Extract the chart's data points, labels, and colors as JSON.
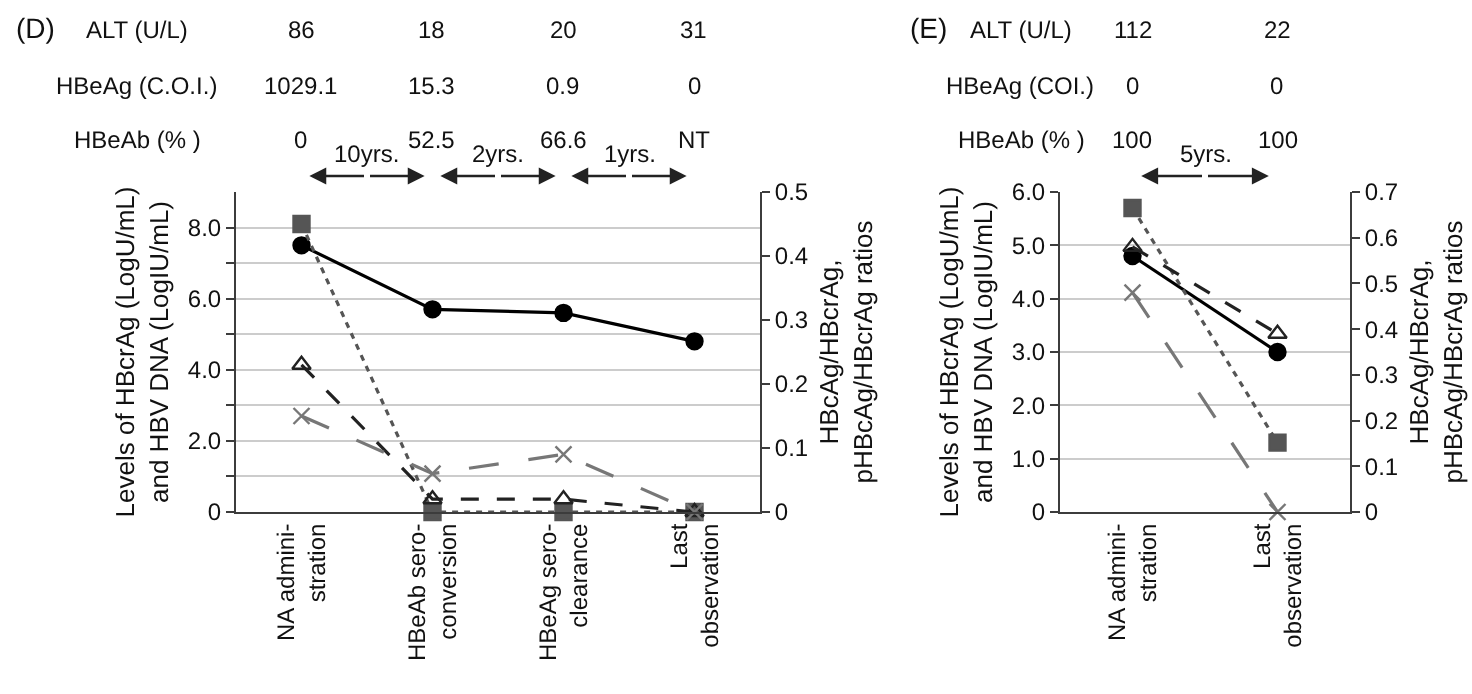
{
  "chart_data": [
    {
      "type": "line",
      "title": "(D)",
      "ylabel": "Levels of HBcrAg (LogU/mL)\nand HBV DNA (LogIU/mL)",
      "y2label": "HBcAg/HBcrAg,\npHBcAg/HBcrAg ratios",
      "categories": [
        "NA admini-\nstration",
        "HBeAb sero-\nconversion",
        "HBeAg sero-\nclearance",
        "Last\nobservation"
      ],
      "series": [
        {
          "color": "#000000",
          "marker": "circle",
          "line_style": "solid",
          "values": [
            7.5,
            5.7,
            5.6,
            4.8
          ]
        },
        {
          "color": "#555555",
          "marker": "square",
          "line_style": "dotted",
          "values": [
            8.1,
            0,
            0,
            0
          ]
        },
        {
          "color": "#222222",
          "marker": "triangle",
          "line_style": "dashed",
          "axis": "y2",
          "values": [
            0.23,
            0.02,
            0.02,
            0
          ]
        },
        {
          "color": "#777777",
          "marker": "cross",
          "line_style": "dashed",
          "axis": "y2",
          "values": [
            0.15,
            0.06,
            0.09,
            0
          ]
        }
      ],
      "ylim": [
        0,
        9
      ],
      "yticks": [
        0,
        {
          "value": 1,
          "label": null
        },
        {
          "value": 2,
          "label": "2.0"
        },
        {
          "value": 3,
          "label": null
        },
        {
          "value": 4,
          "label": "4.0"
        },
        {
          "value": 5,
          "label": null
        },
        {
          "value": 6,
          "label": "6.0"
        },
        {
          "value": 7,
          "label": null
        },
        {
          "value": 8,
          "label": "8.0"
        }
      ],
      "y2lim": [
        0,
        0.5
      ],
      "y2ticks": [
        0,
        0.1,
        0.2,
        0.3,
        0.4,
        0.5
      ],
      "grid": "y",
      "annotations": [
        "ALT (U/L)",
        "86",
        "18",
        "20",
        "31",
        "HBeAg (C.O.I.)",
        "1029.1",
        "15.3",
        "0.9",
        "0",
        "HBeAb (% )",
        "0",
        "52.5",
        "66.6",
        "NT",
        "10yrs.",
        "2yrs.",
        "1yrs."
      ]
    },
    {
      "type": "line",
      "title": "(E)",
      "ylabel": "Levels of HBcrAg (LogU/mL)\nand HBV DNA (LogIU/mL)",
      "y2label": "HBcAg/HBcrAg,\npHBcAg/HBcrAg ratios",
      "categories": [
        "NA admini-\nstration",
        "Last\nobservation"
      ],
      "series": [
        {
          "color": "#000000",
          "marker": "circle",
          "line_style": "solid",
          "values": [
            4.8,
            3.0
          ]
        },
        {
          "color": "#555555",
          "marker": "square",
          "line_style": "dotted",
          "values": [
            5.7,
            1.3
          ]
        },
        {
          "color": "#222222",
          "marker": "triangle",
          "line_style": "dashed",
          "axis": "y2",
          "values": [
            0.58,
            0.39
          ]
        },
        {
          "color": "#777777",
          "marker": "cross",
          "line_style": "dashed",
          "axis": "y2",
          "values": [
            0.48,
            0
          ]
        }
      ],
      "ylim": [
        0,
        6
      ],
      "yticks": [
        0,
        {
          "value": 1,
          "label": "1.0"
        },
        {
          "value": 2,
          "label": "2.0"
        },
        {
          "value": 3,
          "label": "3.0"
        },
        {
          "value": 4,
          "label": "4.0"
        },
        {
          "value": 5,
          "label": "5.0"
        },
        {
          "value": 6,
          "label": "6.0"
        }
      ],
      "y2lim": [
        0,
        0.7
      ],
      "y2ticks": [
        0,
        0.1,
        0.2,
        0.3,
        0.4,
        0.5,
        0.6,
        0.7
      ],
      "grid": "y",
      "annotations": [
        "ALT (U/L)",
        "112",
        "22",
        "HBeAg (COI.)",
        "0",
        "0",
        "HBeAb (% )",
        "100",
        "100",
        "5yrs."
      ]
    }
  ]
}
